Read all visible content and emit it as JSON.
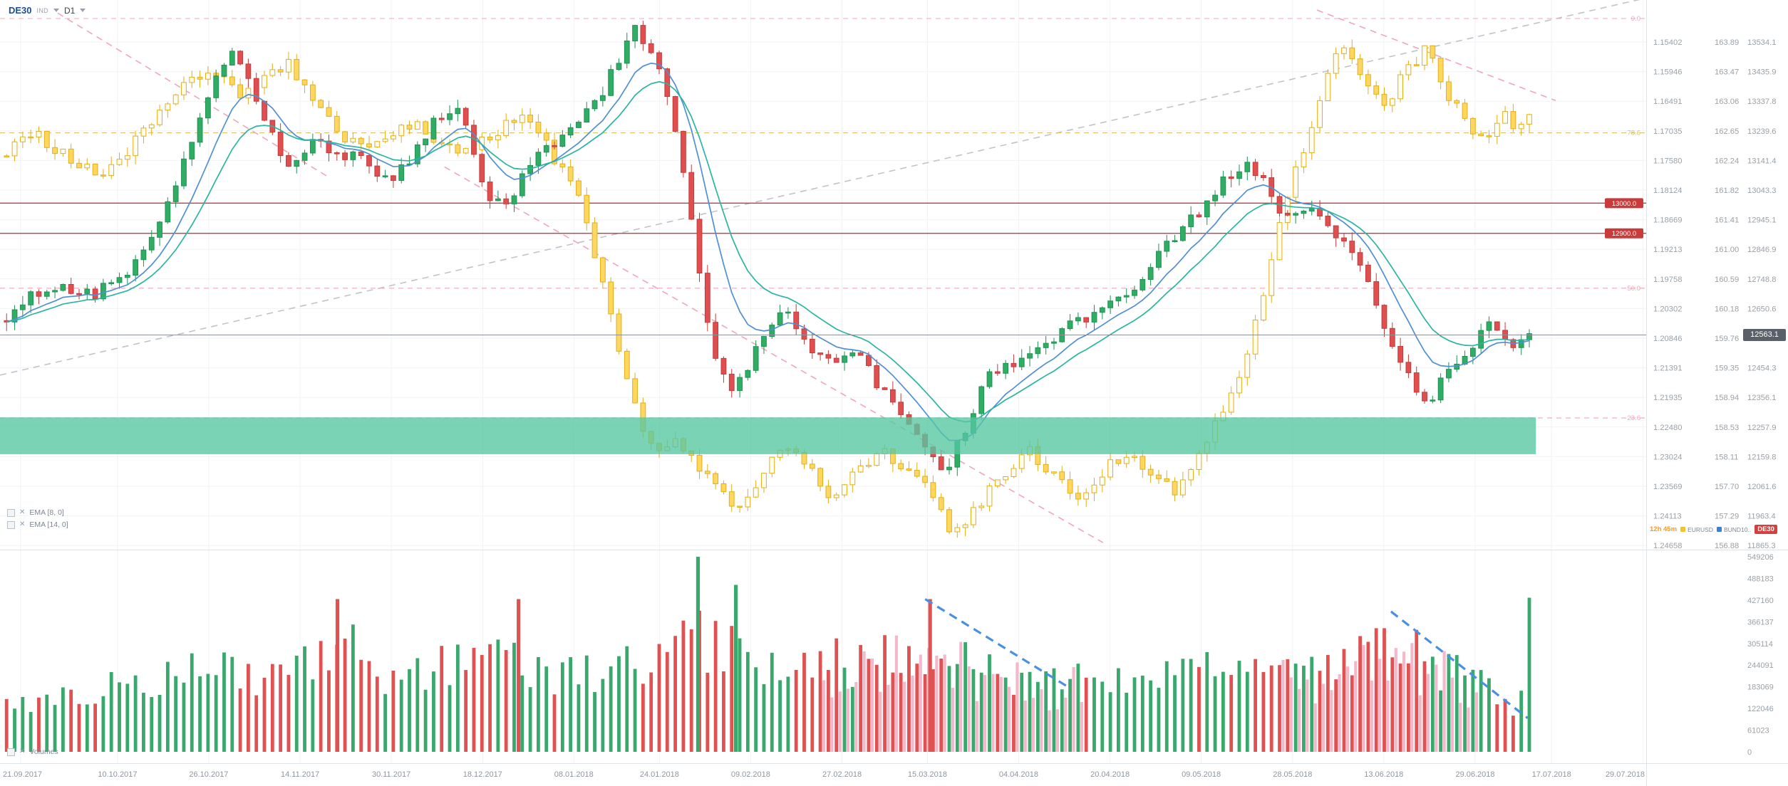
{
  "header": {
    "symbol": "DE30",
    "instrument_type": "IND",
    "timeframe": "D1"
  },
  "icons": {
    "remove": "✕"
  },
  "indicator_legend": [
    {
      "label": "EMA [8, 0]"
    },
    {
      "label": "EMA [14, 0]"
    }
  ],
  "volume_legend": {
    "label": "Volumes"
  },
  "axis_gutter": {
    "countdown": "12h 45m",
    "countdown_color": "#f59b22",
    "chips": [
      {
        "label": "EURUSD",
        "color": "#f0c23c"
      },
      {
        "label": "BUND10..",
        "color": "#3b7fd4"
      }
    ],
    "active_symbol_badge": {
      "label": "DE30",
      "color": "#d43f3f"
    },
    "current_price_badge": {
      "value": "12563.1",
      "bg": "#5a6069"
    }
  },
  "colors": {
    "up": "#2fae63",
    "upStroke": "#1f9154",
    "down": "#e04f4f",
    "downStroke": "#c43b3b",
    "eurFill": "#ffd75e",
    "eurFillLight": "#fffdf0",
    "eurStroke": "#e2ae1a",
    "ema8": "#4f8fd4",
    "ema14": "#2ab5a0",
    "level": "#c93a3a",
    "grid": "#f1f2f4",
    "axisText": "#99a1a9",
    "dateText": "#8f969e",
    "currentLine": "#8c9197",
    "volUp": "#3aa76d",
    "volDown": "#e05252",
    "volPink": "#f4b8cb",
    "volTrend": "#4a90e2",
    "grayTrend": "#c2c2cc",
    "pinkTrend": "#f0a6b8",
    "zone": "rgba(86,198,161,0.78)",
    "separator": "#dfe3e6"
  },
  "chart_data": {
    "type": "candlestick",
    "title": "DE30 D1 with EURUSD and BUND10 overlays, EMA(8), EMA(14) and Volumes",
    "price_axes": {
      "eurusd_labels": [
        "1.15402",
        "1.15946",
        "1.16491",
        "1.17035",
        "1.17580",
        "1.18124",
        "1.18669",
        "1.19213",
        "1.19758",
        "1.20302",
        "1.20846",
        "1.21391",
        "1.21935",
        "1.22480",
        "1.23024",
        "1.23569",
        "1.24113",
        "1.24658"
      ],
      "bund_labels": [
        "163.89",
        "163.47",
        "163.06",
        "162.65",
        "162.24",
        "161.82",
        "161.41",
        "161.00",
        "160.59",
        "160.18",
        "159.76",
        "159.35",
        "158.94",
        "158.53",
        "158.11",
        "157.70",
        "157.29",
        "156.88"
      ],
      "de30_labels": [
        "13534.1",
        "13435.9",
        "13337.8",
        "13239.6",
        "13141.4",
        "13043.3",
        "12945.1",
        "12846.9",
        "12748.8",
        "12650.6",
        "12552.4",
        "12454.3",
        "12356.1",
        "12257.9",
        "12159.8",
        "12061.6",
        "11963.4",
        "11865.3"
      ]
    },
    "dates": [
      [
        "21.09.2017",
        0.0125
      ],
      [
        "10.10.2017",
        0.0714
      ],
      [
        "26.10.2017",
        0.1268
      ],
      [
        "14.11.2017",
        0.1823
      ],
      [
        "30.11.2017",
        0.2377
      ],
      [
        "18.12.2017",
        0.2932
      ],
      [
        "08.01.2018",
        0.3486
      ],
      [
        "24.01.2018",
        0.4006
      ],
      [
        "09.02.2018",
        0.456
      ],
      [
        "27.02.2018",
        0.5115
      ],
      [
        "15.03.2018",
        0.5634
      ],
      [
        "04.04.2018",
        0.6188
      ],
      [
        "20.04.2018",
        0.6743
      ],
      [
        "09.05.2018",
        0.7297
      ],
      [
        "28.05.2018",
        0.7852
      ],
      [
        "13.06.2018",
        0.8406
      ],
      [
        "29.06.2018",
        0.8961
      ],
      [
        "17.07.2018",
        0.9425
      ],
      [
        "29.07.2018",
        0.998
      ]
    ],
    "levels": [
      {
        "price": 13000.0,
        "label": "13000.0"
      },
      {
        "price": 12900.0,
        "label": "12900.0"
      }
    ],
    "current_price": 12563.1,
    "zone": {
      "price_top": 12290,
      "price_bottom": 12168,
      "t_end": 0.933
    },
    "fib_lines": [
      {
        "label": "0.0",
        "price": 13612,
        "color": "#f0a6b8"
      },
      {
        "label": "78.6",
        "price": 13233,
        "color": "#d9c06a"
      },
      {
        "label": "50.0",
        "price": 12718,
        "color": "#f0a6b8"
      },
      {
        "label": "23.6",
        "price": 12288,
        "color": "#f0a6b8"
      }
    ],
    "trendlines": [
      {
        "p1": [
          0.0,
          12430
        ],
        "p2": [
          1.0,
          13680
        ],
        "color": "#c2c2cc"
      },
      {
        "p1": [
          0.035,
          13630
        ],
        "p2": [
          0.2,
          13085
        ],
        "color": "#f0a6b8"
      },
      {
        "p1": [
          0.27,
          13120
        ],
        "p2": [
          0.67,
          11875
        ],
        "color": "#f0a6b8"
      },
      {
        "p1": [
          0.8,
          13640
        ],
        "p2": [
          0.945,
          13340
        ],
        "color": "#f0a6b8"
      }
    ],
    "candle_span": [
      0.004,
      0.929
    ],
    "candle_count": 190,
    "ema_periods": [
      8,
      14
    ],
    "de30_anchors": [
      [
        0.004,
        12620
      ],
      [
        0.02,
        12690
      ],
      [
        0.04,
        12720
      ],
      [
        0.06,
        12700
      ],
      [
        0.08,
        12790
      ],
      [
        0.1,
        12980
      ],
      [
        0.115,
        13180
      ],
      [
        0.13,
        13420
      ],
      [
        0.14,
        13500
      ],
      [
        0.15,
        13430
      ],
      [
        0.162,
        13280
      ],
      [
        0.175,
        13120
      ],
      [
        0.19,
        13200
      ],
      [
        0.205,
        13170
      ],
      [
        0.22,
        13150
      ],
      [
        0.235,
        13080
      ],
      [
        0.25,
        13140
      ],
      [
        0.263,
        13260
      ],
      [
        0.278,
        13330
      ],
      [
        0.292,
        13070
      ],
      [
        0.305,
        12980
      ],
      [
        0.32,
        13110
      ],
      [
        0.34,
        13230
      ],
      [
        0.36,
        13310
      ],
      [
        0.375,
        13470
      ],
      [
        0.384,
        13590
      ],
      [
        0.394,
        13520
      ],
      [
        0.404,
        13400
      ],
      [
        0.414,
        13120
      ],
      [
        0.424,
        12800
      ],
      [
        0.435,
        12470
      ],
      [
        0.446,
        12380
      ],
      [
        0.462,
        12550
      ],
      [
        0.478,
        12640
      ],
      [
        0.492,
        12530
      ],
      [
        0.508,
        12460
      ],
      [
        0.522,
        12490
      ],
      [
        0.538,
        12360
      ],
      [
        0.555,
        12230
      ],
      [
        0.572,
        12100
      ],
      [
        0.586,
        12240
      ],
      [
        0.6,
        12420
      ],
      [
        0.618,
        12470
      ],
      [
        0.635,
        12540
      ],
      [
        0.652,
        12600
      ],
      [
        0.67,
        12640
      ],
      [
        0.69,
        12730
      ],
      [
        0.71,
        12880
      ],
      [
        0.728,
        12970
      ],
      [
        0.745,
        13080
      ],
      [
        0.757,
        13150
      ],
      [
        0.768,
        13060
      ],
      [
        0.78,
        12950
      ],
      [
        0.792,
        12980
      ],
      [
        0.805,
        12930
      ],
      [
        0.818,
        12870
      ],
      [
        0.83,
        12760
      ],
      [
        0.843,
        12570
      ],
      [
        0.856,
        12410
      ],
      [
        0.868,
        12345
      ],
      [
        0.88,
        12440
      ],
      [
        0.893,
        12530
      ],
      [
        0.904,
        12600
      ],
      [
        0.915,
        12525
      ],
      [
        0.929,
        12563
      ]
    ],
    "eurusd_anchors": [
      [
        0.004,
        1.1745
      ],
      [
        0.02,
        1.1705
      ],
      [
        0.04,
        1.175
      ],
      [
        0.06,
        1.179
      ],
      [
        0.08,
        1.173
      ],
      [
        0.1,
        1.166
      ],
      [
        0.115,
        1.161
      ],
      [
        0.13,
        1.159
      ],
      [
        0.145,
        1.164
      ],
      [
        0.16,
        1.1605
      ],
      [
        0.175,
        1.158
      ],
      [
        0.19,
        1.1645
      ],
      [
        0.205,
        1.17
      ],
      [
        0.22,
        1.174
      ],
      [
        0.235,
        1.172
      ],
      [
        0.25,
        1.169
      ],
      [
        0.265,
        1.1725
      ],
      [
        0.28,
        1.1745
      ],
      [
        0.3,
        1.1705
      ],
      [
        0.32,
        1.168
      ],
      [
        0.335,
        1.1745
      ],
      [
        0.35,
        1.181
      ],
      [
        0.36,
        1.192
      ],
      [
        0.37,
        1.203
      ],
      [
        0.38,
        1.215
      ],
      [
        0.39,
        1.225
      ],
      [
        0.4,
        1.23
      ],
      [
        0.412,
        1.227
      ],
      [
        0.425,
        1.232
      ],
      [
        0.438,
        1.236
      ],
      [
        0.45,
        1.24
      ],
      [
        0.462,
        1.2355
      ],
      [
        0.475,
        1.228
      ],
      [
        0.49,
        1.231
      ],
      [
        0.505,
        1.238
      ],
      [
        0.52,
        1.233
      ],
      [
        0.535,
        1.229
      ],
      [
        0.55,
        1.233
      ],
      [
        0.565,
        1.236
      ],
      [
        0.58,
        1.245
      ],
      [
        0.595,
        1.239
      ],
      [
        0.61,
        1.233
      ],
      [
        0.625,
        1.229
      ],
      [
        0.64,
        1.234
      ],
      [
        0.655,
        1.238
      ],
      [
        0.67,
        1.233
      ],
      [
        0.685,
        1.229
      ],
      [
        0.7,
        1.233
      ],
      [
        0.715,
        1.237
      ],
      [
        0.73,
        1.229
      ],
      [
        0.745,
        1.221
      ],
      [
        0.757,
        1.211
      ],
      [
        0.77,
        1.197
      ],
      [
        0.783,
        1.181
      ],
      [
        0.795,
        1.171
      ],
      [
        0.807,
        1.159
      ],
      [
        0.818,
        1.1545
      ],
      [
        0.83,
        1.161
      ],
      [
        0.842,
        1.166
      ],
      [
        0.854,
        1.159
      ],
      [
        0.866,
        1.1555
      ],
      [
        0.878,
        1.1625
      ],
      [
        0.89,
        1.169
      ],
      [
        0.902,
        1.173
      ],
      [
        0.912,
        1.1665
      ],
      [
        0.922,
        1.1705
      ],
      [
        0.929,
        1.1685
      ]
    ],
    "volume": {
      "axis_labels": [
        "549206",
        "488183",
        "427160",
        "366137",
        "305114",
        "244091",
        "183069",
        "122046",
        "61023",
        "0"
      ],
      "envelope": [
        [
          0.004,
          200000
        ],
        [
          0.05,
          210000
        ],
        [
          0.1,
          260000
        ],
        [
          0.14,
          310000
        ],
        [
          0.175,
          260000
        ],
        [
          0.205,
          400000
        ],
        [
          0.24,
          260000
        ],
        [
          0.3,
          370000
        ],
        [
          0.34,
          260000
        ],
        [
          0.38,
          300000
        ],
        [
          0.4,
          330000
        ],
        [
          0.424,
          400000
        ],
        [
          0.45,
          380000
        ],
        [
          0.48,
          300000
        ],
        [
          0.52,
          330000
        ],
        [
          0.565,
          380000
        ],
        [
          0.6,
          280000
        ],
        [
          0.64,
          250000
        ],
        [
          0.68,
          270000
        ],
        [
          0.72,
          300000
        ],
        [
          0.76,
          280000
        ],
        [
          0.8,
          290000
        ],
        [
          0.845,
          370000
        ],
        [
          0.87,
          330000
        ],
        [
          0.9,
          230000
        ],
        [
          0.92,
          160000
        ],
        [
          0.929,
          480000
        ]
      ],
      "spikes": [
        {
          "t": 0.205,
          "v": 430000,
          "color": "red"
        },
        {
          "t": 0.315,
          "v": 430000,
          "color": "red"
        },
        {
          "t": 0.424,
          "v": 549206,
          "color": "green"
        },
        {
          "t": 0.447,
          "v": 470000,
          "color": "green"
        },
        {
          "t": 0.565,
          "v": 430000,
          "color": "red"
        }
      ],
      "pink_ranges": [
        [
          0.495,
          0.655
        ],
        [
          0.775,
          0.895
        ]
      ],
      "trendlines": [
        {
          "p1": [
            0.562,
            430000
          ],
          "p2": [
            0.648,
            185000
          ]
        },
        {
          "p1": [
            0.845,
            395000
          ],
          "p2": [
            0.928,
            95000
          ]
        }
      ]
    }
  }
}
